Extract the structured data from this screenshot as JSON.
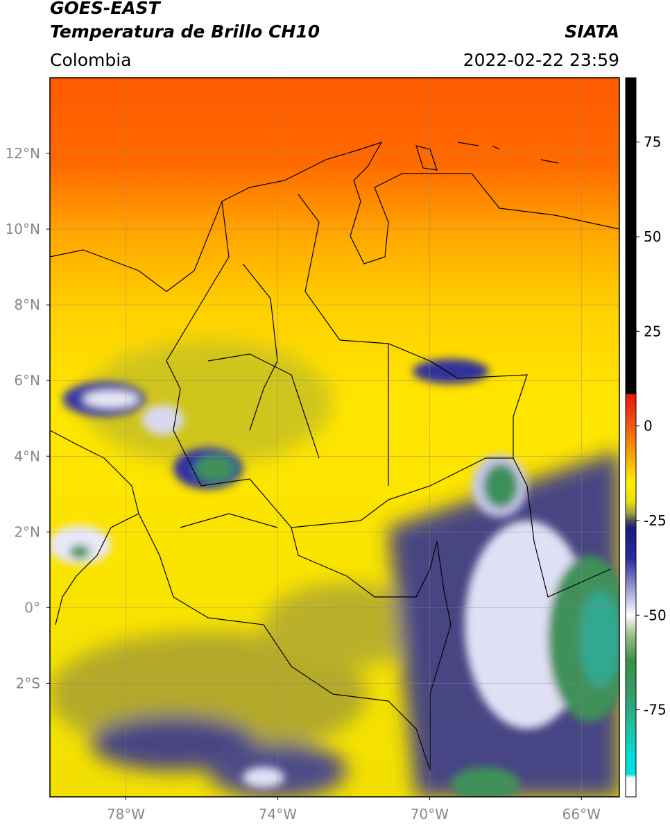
{
  "header": {
    "title": "GOES-EAST",
    "subtitle": "Temperatura de Brillo CH10",
    "source": "SIATA",
    "region": "Colombia",
    "datetime": "2022-02-22 23:59"
  },
  "map": {
    "lonlim": [
      -80,
      -65
    ],
    "latlim": [
      -5,
      14
    ],
    "lat_ticks": [
      {
        "value": 12,
        "label": "12°N"
      },
      {
        "value": 10,
        "label": "10°N"
      },
      {
        "value": 8,
        "label": "8°N"
      },
      {
        "value": 6,
        "label": "6°N"
      },
      {
        "value": 4,
        "label": "4°N"
      },
      {
        "value": 2,
        "label": "2°N"
      },
      {
        "value": 0,
        "label": "0°"
      },
      {
        "value": -2,
        "label": "2°S"
      }
    ],
    "lon_ticks": [
      {
        "value": -78,
        "label": "78°W"
      },
      {
        "value": -74,
        "label": "74°W"
      },
      {
        "value": -70,
        "label": "70°W"
      },
      {
        "value": -66,
        "label": "66°W"
      }
    ],
    "grid": true
  },
  "colorbar": {
    "lim": [
      -98,
      92
    ],
    "ticks": [
      75,
      50,
      25,
      0,
      -25,
      -50,
      -75
    ],
    "stops": [
      {
        "value": 92,
        "color": "#000000"
      },
      {
        "value": 8.5,
        "color": "#000000"
      },
      {
        "value": 8.4,
        "color": "#e8140f"
      },
      {
        "value": 0,
        "color": "#f05a10"
      },
      {
        "value": -8,
        "color": "#f8a808"
      },
      {
        "value": -15,
        "color": "#ffee00"
      },
      {
        "value": -20,
        "color": "#e8e010"
      },
      {
        "value": -23,
        "color": "#a0a040"
      },
      {
        "value": -25,
        "color": "#505050"
      },
      {
        "value": -27,
        "color": "#1a1a80"
      },
      {
        "value": -35,
        "color": "#2a2aa0"
      },
      {
        "value": -45,
        "color": "#b8b8e0"
      },
      {
        "value": -50,
        "color": "#ffffff"
      },
      {
        "value": -55,
        "color": "#a0c090"
      },
      {
        "value": -62,
        "color": "#3a9040"
      },
      {
        "value": -72,
        "color": "#30a070"
      },
      {
        "value": -80,
        "color": "#20c0a0"
      },
      {
        "value": -88,
        "color": "#00e0e0"
      },
      {
        "value": -92,
        "color": "#00e0e0"
      },
      {
        "value": -93,
        "color": "#ffffff"
      },
      {
        "value": -98,
        "color": "#ffffff"
      }
    ]
  }
}
